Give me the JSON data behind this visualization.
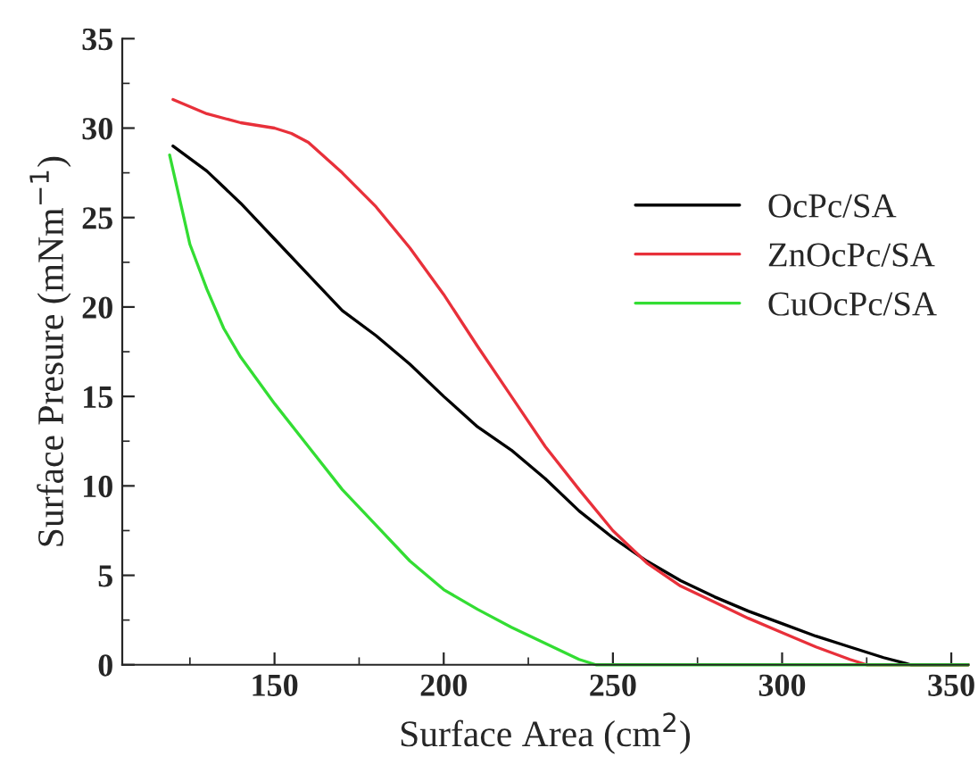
{
  "chart_data": {
    "type": "line",
    "xlabel": "Surface Area (cm$^{2}$)",
    "ylabel": "Surface Presure (mNm$^{−1}$)",
    "xlim": [
      105,
      355
    ],
    "ylim": [
      0,
      35
    ],
    "xticks": [
      150,
      200,
      250,
      300,
      350
    ],
    "yticks": [
      0,
      5,
      10,
      15,
      20,
      25,
      30,
      35
    ],
    "legend": "right",
    "grid": false,
    "marker": "none",
    "line_style": "solid",
    "series": [
      {
        "name": "OcPc/SA",
        "color": "#000000",
        "x": [
          120,
          130,
          140,
          150,
          160,
          170,
          180,
          190,
          200,
          210,
          220,
          230,
          240,
          250,
          260,
          270,
          280,
          290,
          300,
          310,
          320,
          330,
          338,
          355
        ],
        "values": [
          29,
          27.6,
          25.8,
          23.8,
          21.8,
          19.8,
          18.4,
          16.8,
          15,
          13.3,
          12,
          10.4,
          8.6,
          7.1,
          5.8,
          4.7,
          3.8,
          3,
          2.3,
          1.6,
          1,
          0.4,
          0,
          0
        ]
      },
      {
        "name": "ZnOcPc/SA",
        "color": "#e8303a",
        "x": [
          120,
          130,
          140,
          150,
          155,
          160,
          170,
          180,
          190,
          200,
          210,
          220,
          230,
          240,
          250,
          260,
          270,
          280,
          290,
          300,
          310,
          320,
          325,
          355
        ],
        "values": [
          31.6,
          30.8,
          30.3,
          30,
          29.7,
          29.2,
          27.5,
          25.6,
          23.3,
          20.7,
          17.8,
          15,
          12.2,
          9.8,
          7.5,
          5.7,
          4.4,
          3.5,
          2.6,
          1.8,
          1,
          0.3,
          0,
          0
        ]
      },
      {
        "name": "CuOcPc/SA",
        "color": "#33dd33",
        "x": [
          119,
          125,
          130,
          135,
          140,
          150,
          160,
          170,
          180,
          190,
          200,
          210,
          220,
          230,
          240,
          245,
          355
        ],
        "values": [
          28.5,
          23.5,
          21,
          18.8,
          17.2,
          14.6,
          12.2,
          9.8,
          7.8,
          5.8,
          4.2,
          3.1,
          2.1,
          1.2,
          0.3,
          0,
          0
        ]
      }
    ]
  }
}
